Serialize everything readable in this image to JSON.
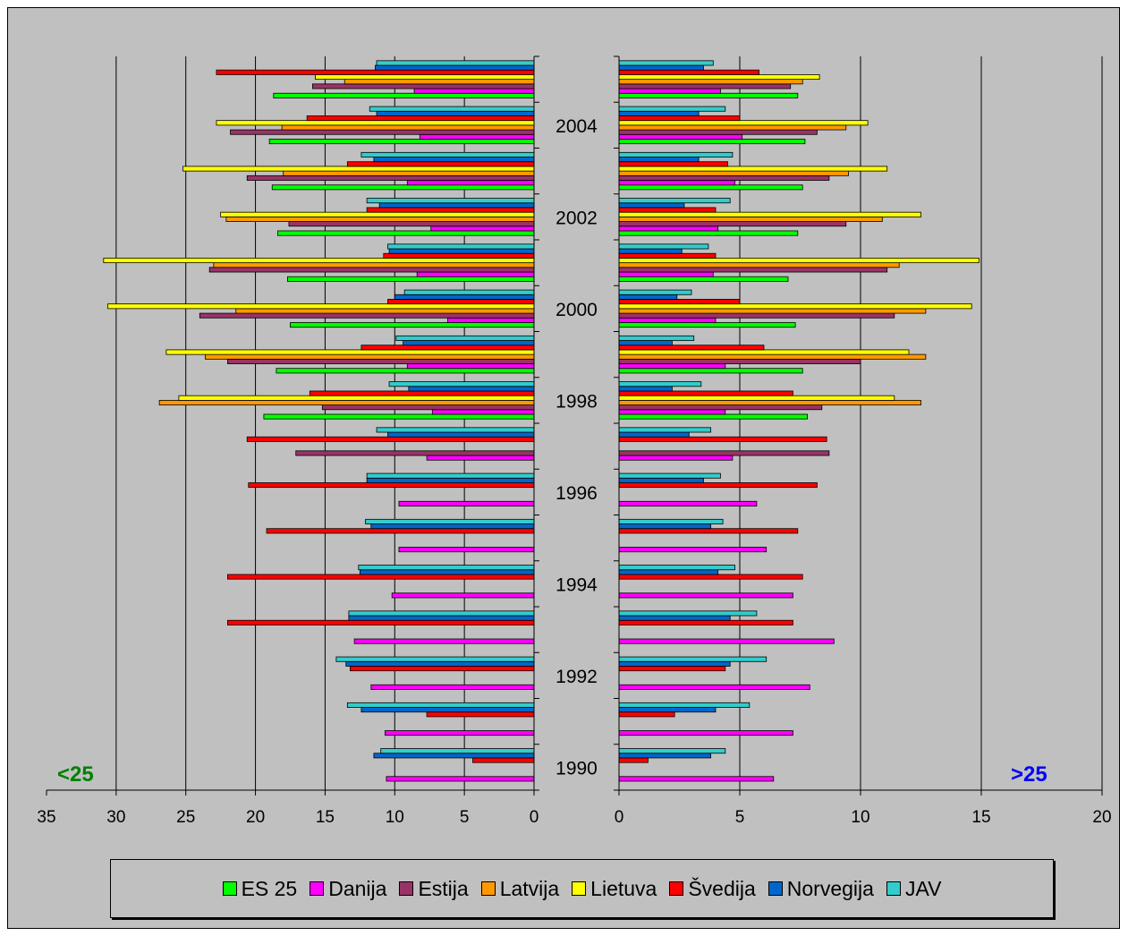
{
  "chart_data": {
    "type": "bar",
    "orientation": "horizontal",
    "years": [
      1990,
      1991,
      1992,
      1993,
      1994,
      1995,
      1996,
      1997,
      1998,
      1999,
      2000,
      2001,
      2002,
      2003,
      2004,
      2005
    ],
    "year_tick_labels": [
      "1990",
      "1992",
      "1994",
      "1996",
      "1998",
      "2000",
      "2002",
      "2004"
    ],
    "left_panel": {
      "label": "<25",
      "label_color": "#008000",
      "xlim": [
        35,
        0
      ],
      "ticks": [
        "35",
        "30",
        "25",
        "20",
        "15",
        "10",
        "5",
        "0"
      ],
      "grid": true
    },
    "right_panel": {
      "label": ">25",
      "label_color": "#0000ff",
      "xlim": [
        0,
        20
      ],
      "ticks": [
        "0",
        "5",
        "10",
        "15",
        "20"
      ],
      "grid": true
    },
    "series": [
      {
        "name": "ES 25",
        "color": "#00ff00",
        "left": [
          null,
          null,
          null,
          null,
          null,
          null,
          null,
          null,
          19.4,
          18.5,
          17.5,
          17.7,
          18.4,
          18.8,
          19,
          18.7
        ],
        "right": [
          null,
          null,
          null,
          null,
          null,
          null,
          null,
          null,
          7.8,
          7.6,
          7.3,
          7,
          7.4,
          7.6,
          7.7,
          7.4
        ]
      },
      {
        "name": "Danija",
        "color": "#ff00ff",
        "left": [
          10.6,
          10.7,
          11.7,
          12.9,
          10.2,
          9.7,
          9.7,
          7.7,
          7.3,
          9.1,
          6.2,
          8.4,
          7.4,
          9.1,
          8.2,
          8.6
        ],
        "right": [
          6.4,
          7.2,
          7.9,
          8.9,
          7.2,
          6.1,
          5.7,
          4.7,
          4.4,
          4.4,
          4,
          3.9,
          4.1,
          4.8,
          5.1,
          4.2
        ]
      },
      {
        "name": "Estija",
        "color": "#993366",
        "left": [
          null,
          null,
          null,
          null,
          null,
          null,
          null,
          17.1,
          15.2,
          22,
          24,
          23.3,
          17.6,
          20.6,
          21.8,
          15.9
        ],
        "right": [
          null,
          null,
          null,
          null,
          null,
          null,
          null,
          8.7,
          8.4,
          10,
          11.4,
          11.1,
          9.4,
          8.7,
          8.2,
          7.1
        ]
      },
      {
        "name": "Latvija",
        "color": "#ff9900",
        "left": [
          null,
          null,
          null,
          null,
          null,
          null,
          null,
          null,
          26.9,
          23.6,
          21.4,
          23,
          22.1,
          18,
          18.1,
          13.6
        ],
        "right": [
          null,
          null,
          null,
          null,
          null,
          null,
          null,
          null,
          12.5,
          12.7,
          12.7,
          11.6,
          10.9,
          9.5,
          9.4,
          7.6
        ]
      },
      {
        "name": "Lietuva",
        "color": "#ffff00",
        "left": [
          null,
          null,
          null,
          null,
          null,
          null,
          null,
          null,
          25.5,
          26.4,
          30.6,
          30.9,
          22.5,
          25.2,
          22.8,
          15.7
        ],
        "right": [
          null,
          null,
          null,
          null,
          null,
          null,
          null,
          null,
          11.4,
          12,
          14.6,
          14.9,
          12.5,
          11.1,
          10.3,
          8.3
        ]
      },
      {
        "name": "Švedija",
        "color": "#ff0000",
        "left": [
          4.4,
          7.7,
          13.2,
          22,
          22,
          19.2,
          20.5,
          20.6,
          16.1,
          12.4,
          10.5,
          10.8,
          12,
          13.4,
          16.3,
          22.8
        ],
        "right": [
          1.2,
          2.3,
          4.4,
          7.2,
          7.6,
          7.4,
          8.2,
          8.6,
          7.2,
          6,
          5,
          4,
          4,
          4.5,
          5,
          5.8
        ]
      },
      {
        "name": "Norvegija",
        "color": "#0066cc",
        "left": [
          11.5,
          12.4,
          13.5,
          13.3,
          12.5,
          11.7,
          12,
          10.5,
          9,
          9.4,
          10,
          10.4,
          11.1,
          11.5,
          11.3,
          11.4
        ],
        "right": [
          3.8,
          4,
          4.6,
          4.6,
          4.1,
          3.8,
          3.5,
          2.9,
          2.2,
          2.2,
          2.4,
          2.6,
          2.7,
          3.3,
          3.3,
          3.5
        ]
      },
      {
        "name": "JAV",
        "color": "#33cccc",
        "left": [
          11,
          13.4,
          14.2,
          13.3,
          12.6,
          12.1,
          12,
          11.3,
          10.4,
          9.9,
          9.3,
          10.5,
          12,
          12.4,
          11.8,
          11.3
        ],
        "right": [
          4.4,
          5.4,
          6.1,
          5.7,
          4.8,
          4.3,
          4.2,
          3.8,
          3.4,
          3.1,
          3,
          3.7,
          4.6,
          4.7,
          4.4,
          3.9
        ]
      }
    ]
  }
}
